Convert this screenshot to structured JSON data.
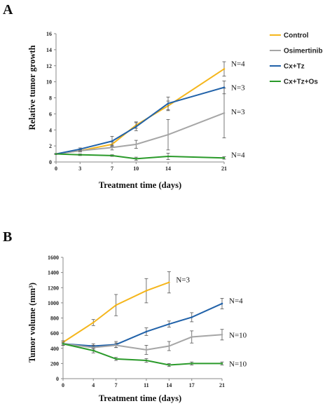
{
  "chart_data": [
    {
      "panel": "A",
      "type": "line",
      "title": "",
      "xlabel": "Treatment time (days)",
      "ylabel": "Relative tumor growth",
      "x": [
        0,
        3,
        7,
        10,
        14,
        21
      ],
      "xlim": [
        0,
        21
      ],
      "ylim": [
        0,
        16
      ],
      "yticks": [
        0,
        2,
        4,
        6,
        8,
        10,
        12,
        14,
        16
      ],
      "grid": false,
      "legend": "right",
      "series": [
        {
          "name": "Control",
          "color": "#F5B61C",
          "values": [
            1.0,
            1.4,
            2.2,
            4.6,
            7.0,
            11.6
          ],
          "err": [
            0.05,
            0.1,
            0.3,
            0.4,
            0.6,
            0.9
          ],
          "label": "N=4",
          "label_y": 12.3
        },
        {
          "name": "Osimertinib",
          "color": "#A6A6A6",
          "values": [
            1.0,
            1.4,
            1.8,
            2.2,
            3.4,
            6.1
          ],
          "err": [
            0.05,
            0.15,
            0.3,
            0.5,
            1.9,
            3.1
          ],
          "label": "N=3",
          "label_y": 6.3
        },
        {
          "name": "Cx+Tz",
          "color": "#2162A9",
          "values": [
            1.0,
            1.6,
            2.6,
            4.4,
            7.3,
            9.3
          ],
          "err": [
            0.05,
            0.15,
            0.6,
            0.5,
            0.8,
            0.8
          ],
          "label": "N=3",
          "label_y": 9.3
        },
        {
          "name": "Cx+Tz+Os",
          "color": "#2A9A2A",
          "values": [
            1.0,
            0.9,
            0.8,
            0.4,
            0.7,
            0.5
          ],
          "err": [
            0.05,
            0.1,
            0.1,
            0.2,
            0.4,
            0.15
          ],
          "label": "N=4",
          "label_y": 0.9
        }
      ]
    },
    {
      "panel": "B",
      "type": "line",
      "title": "",
      "xlabel": "Treatment time (days)",
      "ylabel": "Tumor volume (mm³)",
      "x": [
        0,
        4,
        7,
        11,
        14,
        17,
        21
      ],
      "xlim": [
        0,
        21
      ],
      "ylim": [
        0,
        1600
      ],
      "yticks": [
        0,
        200,
        400,
        600,
        800,
        1000,
        1200,
        1400,
        1600
      ],
      "grid": false,
      "series": [
        {
          "name": "Control",
          "color": "#F5B61C",
          "x": [
            0,
            4,
            7,
            11,
            14
          ],
          "values": [
            480,
            740,
            970,
            1160,
            1270
          ],
          "err": [
            20,
            40,
            140,
            160,
            140
          ],
          "label": "N=3",
          "label_y": 1310
        },
        {
          "name": "Cx+Tz",
          "color": "#2162A9",
          "x": [
            0,
            4,
            7,
            11,
            14,
            17,
            21
          ],
          "values": [
            460,
            430,
            450,
            620,
            720,
            810,
            990
          ],
          "err": [
            20,
            30,
            40,
            50,
            40,
            60,
            70
          ],
          "label": "N=4",
          "label_y": 1030
        },
        {
          "name": "Osimertinib",
          "color": "#A6A6A6",
          "x": [
            0,
            4,
            7,
            11,
            14,
            17,
            21
          ],
          "values": [
            460,
            410,
            440,
            380,
            430,
            550,
            580
          ],
          "err": [
            20,
            30,
            30,
            60,
            60,
            80,
            70
          ],
          "label": "N=10",
          "label_y": 580
        },
        {
          "name": "Cx+Tz+Os",
          "color": "#2A9A2A",
          "x": [
            0,
            4,
            7,
            11,
            14,
            17,
            21
          ],
          "values": [
            460,
            370,
            260,
            240,
            180,
            200,
            200
          ],
          "err": [
            20,
            30,
            20,
            25,
            20,
            20,
            20
          ],
          "label": "N=10",
          "label_y": 200
        }
      ]
    }
  ],
  "legend_items": [
    "Control",
    "Osimertinib",
    "Cx+Tz",
    "Cx+Tz+Os"
  ]
}
